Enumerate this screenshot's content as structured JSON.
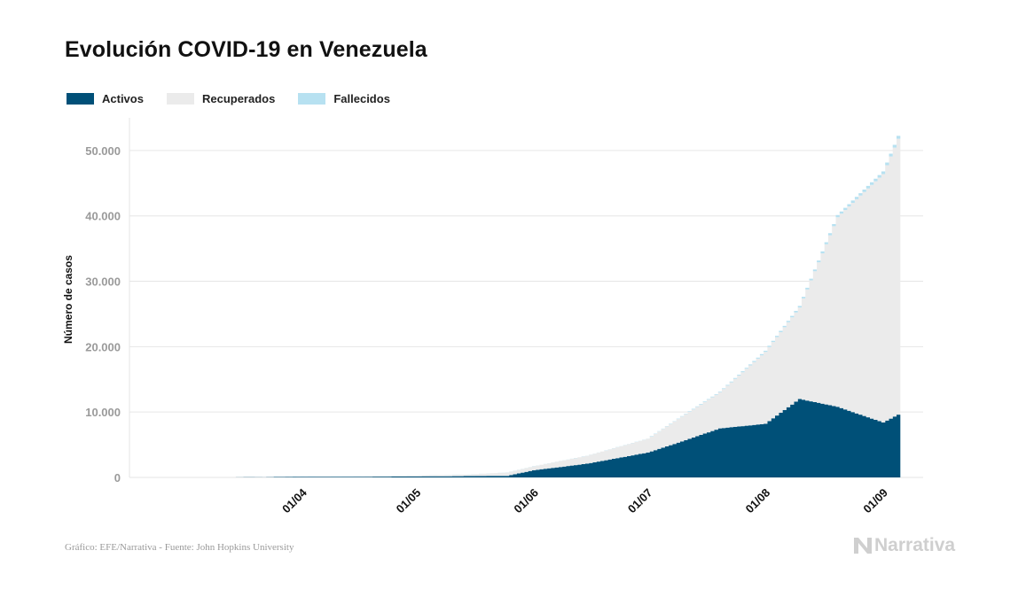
{
  "title": "Evolución COVID-19 en Venezuela",
  "source": "Gráfico: EFE/Narrativa - Fuente: John Hopkins University",
  "brand": "Narrativa",
  "colors": {
    "activos": "#005078",
    "recuperados": "#ebebeb",
    "fallecidos": "#b7e1f1",
    "grid": "#e6e6e6",
    "tick": "#9a9a9a"
  },
  "chart_data": {
    "type": "area",
    "title": "Evolución COVID-19 en Venezuela",
    "xlabel": "",
    "ylabel": "Número de casos",
    "ylim": [
      0,
      55000
    ],
    "yticks": [
      0,
      10000,
      20000,
      30000,
      40000,
      50000
    ],
    "ytick_labels": [
      "0",
      "10.000",
      "20.000",
      "30.000",
      "40.000",
      "50.000"
    ],
    "xticks": [
      "01/04",
      "01/05",
      "01/06",
      "01/07",
      "01/08",
      "01/09"
    ],
    "legend_position": "top-left",
    "grid": true,
    "stacked": true,
    "x": [
      "15/03",
      "01/04",
      "15/04",
      "01/05",
      "15/05",
      "25/05",
      "01/06",
      "15/06",
      "01/07",
      "10/07",
      "20/07",
      "01/08",
      "10/08",
      "20/08",
      "01/09",
      "05/09"
    ],
    "series": [
      {
        "name": "Activos",
        "values": [
          10,
          100,
          100,
          150,
          200,
          250,
          1100,
          2100,
          3800,
          5500,
          7500,
          8200,
          12000,
          10800,
          8400,
          9600
        ]
      },
      {
        "name": "Recuperados",
        "values": [
          0,
          40,
          100,
          150,
          250,
          500,
          600,
          1200,
          2100,
          3800,
          5500,
          11000,
          14000,
          29000,
          38000,
          42200
        ]
      },
      {
        "name": "Fallecidos",
        "values": [
          0,
          7,
          10,
          10,
          10,
          10,
          14,
          20,
          40,
          70,
          110,
          175,
          230,
          330,
          400,
          430
        ]
      }
    ]
  }
}
